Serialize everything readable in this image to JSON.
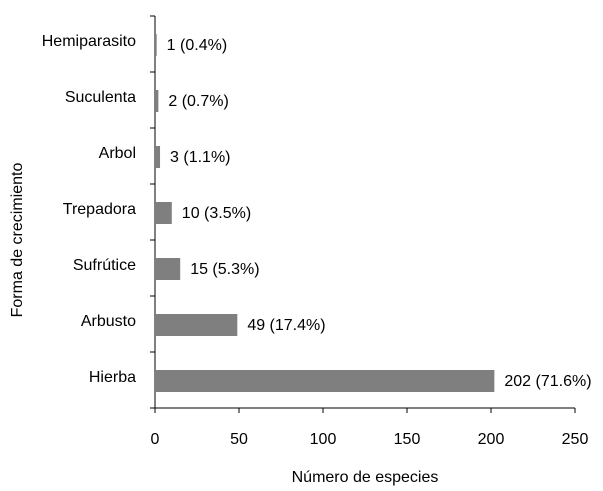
{
  "chart_data": {
    "type": "bar",
    "orientation": "horizontal",
    "categories": [
      "Hemiparasito",
      "Suculenta",
      "Arbol",
      "Trepadora",
      "Sufrútice",
      "Arbusto",
      "Hierba"
    ],
    "values": [
      1,
      2,
      3,
      10,
      15,
      49,
      202
    ],
    "value_labels": [
      "1 (0.4%)",
      "2 (0.7%)",
      "3 (1.1%)",
      "10 (3.5%)",
      "15 (5.3%)",
      "49 (17.4%)",
      "202 (71.6%)"
    ],
    "color": "#7f7f7f",
    "xlabel": "Número de especies",
    "ylabel": "Forma de crecimiento",
    "xlim": [
      0,
      250
    ],
    "xticks": [
      0,
      50,
      100,
      150,
      200,
      250
    ],
    "grid": false
  }
}
